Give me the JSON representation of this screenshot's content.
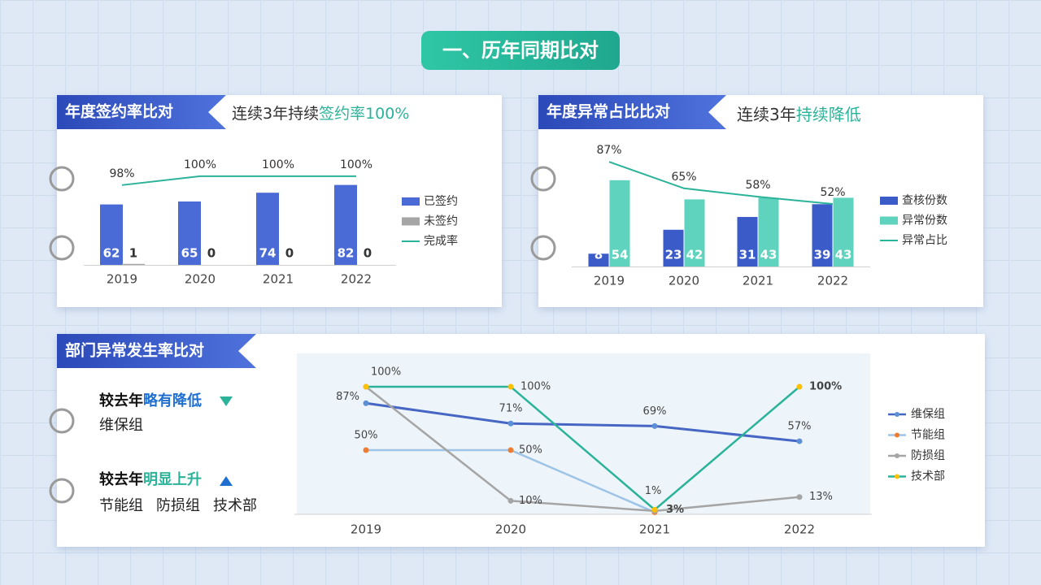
{
  "title": "一、历年同期比对",
  "panels": [
    {
      "header": "年度签约率比对",
      "subtitle_plain": "连续3年持续",
      "subtitle_highlight": "签约率100%"
    },
    {
      "header": "年度异常占比比对",
      "subtitle_plain": "连续3年",
      "subtitle_highlight": "持续降低"
    },
    {
      "header": "部门异常发生率比对"
    }
  ],
  "summary": [
    {
      "prefix": "较去年",
      "highlight": "略有降低",
      "groups": [
        "维保组"
      ]
    },
    {
      "prefix": "较去年",
      "highlight": "明显上升",
      "groups": [
        "节能组",
        "防损组",
        "技术部"
      ]
    }
  ],
  "chart_data": [
    {
      "type": "bar",
      "categories": [
        "2019",
        "2020",
        "2021",
        "2022"
      ],
      "ylim": [
        0,
        100
      ],
      "y2lim": [
        80,
        102
      ],
      "series": [
        {
          "name": "已签约",
          "color": "#4a6bd6",
          "values": [
            62,
            65,
            74,
            82
          ]
        },
        {
          "name": "未签约",
          "color": "#a5a5a5",
          "values": [
            1,
            0,
            0,
            0
          ]
        },
        {
          "name": "完成率",
          "color": "#2bb39a",
          "axis": "y2",
          "values": [
            98,
            100,
            100,
            100
          ],
          "value_labels": [
            "98%",
            "100%",
            "100%",
            "100%"
          ]
        }
      ]
    },
    {
      "type": "bar",
      "categories": [
        "2019",
        "2020",
        "2021",
        "2022"
      ],
      "ylim": [
        0,
        60
      ],
      "y2lim": [
        0,
        100
      ],
      "series": [
        {
          "name": "查核份数",
          "color": "#3b5bc9",
          "values": [
            8,
            23,
            31,
            39
          ]
        },
        {
          "name": "异常份数",
          "color": "#5fd3bd",
          "values": [
            54,
            42,
            43,
            43
          ]
        },
        {
          "name": "异常占比",
          "color": "#2bb39a",
          "axis": "y2",
          "values": [
            87,
            65,
            58,
            52
          ],
          "value_labels": [
            "87%",
            "65%",
            "58%",
            "52%"
          ]
        }
      ]
    },
    {
      "type": "line",
      "categories": [
        "2019",
        "2020",
        "2021",
        "2022"
      ],
      "ylim": [
        0,
        100
      ],
      "series": [
        {
          "name": "维保组",
          "color": "#4766c4",
          "marker_color": "#5b8fd6",
          "values": [
            87,
            71,
            69,
            57
          ],
          "value_labels": [
            "87%",
            "71%",
            "69%",
            "57%"
          ]
        },
        {
          "name": "节能组",
          "color": "#9dc3e6",
          "marker_color": "#ed7d31",
          "values": [
            50,
            50,
            1,
            null
          ],
          "value_labels": [
            "50%",
            "50%",
            "1%",
            null
          ]
        },
        {
          "name": "防损组",
          "color": "#a5a5a5",
          "marker_color": "#a5a5a5",
          "values": [
            100,
            10,
            2,
            13
          ],
          "value_labels": [
            "100%",
            "10%",
            null,
            "13%"
          ]
        },
        {
          "name": "技术部",
          "color": "#2bb39a",
          "marker_color": "#ffc000",
          "values": [
            100,
            100,
            3,
            100
          ],
          "value_labels": [
            null,
            "100%",
            "3%",
            "100%"
          ]
        }
      ]
    }
  ]
}
